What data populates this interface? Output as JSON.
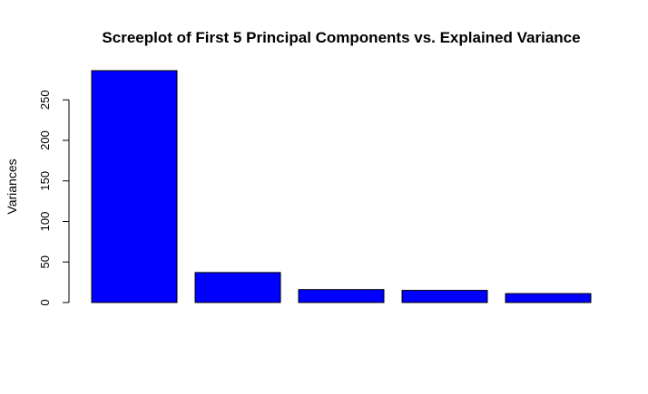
{
  "chart_data": {
    "type": "bar",
    "title": "Screeplot of First 5 Principal Components vs. Explained Variance",
    "xlabel": "",
    "ylabel": "Variances",
    "categories": [
      "",
      "",
      "",
      "",
      ""
    ],
    "values": [
      286,
      37,
      16,
      15,
      11
    ],
    "ylim": [
      0,
      286
    ],
    "yticks": [
      0,
      50,
      100,
      150,
      200,
      250
    ],
    "bar_color": "#0000ff",
    "grid": false,
    "legend": "none"
  }
}
